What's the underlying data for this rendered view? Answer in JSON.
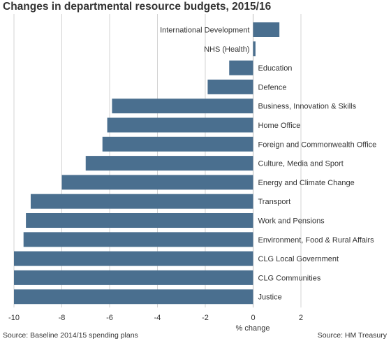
{
  "title": "Changes in departmental resource budgets, 2015/16",
  "source_left": "Source: Baseline 2014/15 spending plans",
  "source_right": "Source: HM Treasury",
  "chart_data": {
    "type": "bar",
    "orientation": "horizontal",
    "title": "Changes in departmental resource budgets, 2015/16",
    "xlabel": "% change",
    "ylabel": "",
    "xlim": [
      -10,
      2
    ],
    "xticks": [
      -10,
      -8,
      -6,
      -4,
      -2,
      0,
      2
    ],
    "grid": true,
    "bar_color": "#4a6f8f",
    "categories": [
      "International Development",
      "NHS (Health)",
      "Education",
      "Defence",
      "Business, Innovation & Skills",
      "Home Office",
      "Foreign and Commonwealth Office",
      "Culture, Media and Sport",
      "Energy and Climate Change",
      "Transport",
      "Work and Pensions",
      "Environment, Food & Rural Affairs",
      "CLG Local Government",
      "CLG Communities",
      "Justice"
    ],
    "values": [
      1.1,
      0.1,
      -1.0,
      -1.9,
      -5.9,
      -6.1,
      -6.3,
      -7.0,
      -8.0,
      -9.3,
      -9.5,
      -9.6,
      -10.0,
      -10.0,
      -10.0
    ]
  }
}
